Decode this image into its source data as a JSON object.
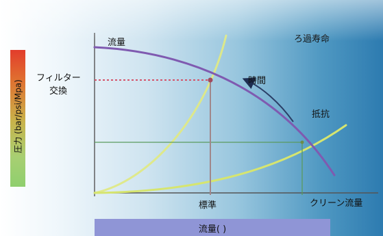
{
  "labels": {
    "flow": "流量",
    "filter_life": "ろ過寿命",
    "filter_change_line1": "フィルター",
    "filter_change_line2": "交換",
    "time": "時間",
    "resistance": "抵抗",
    "standard": "標準",
    "clean_flow": "クリーン流量",
    "pressure_axis": "圧力 (bar/psi/Mpa)",
    "flow_axis": "流量( )"
  },
  "colors": {
    "flow_curve": "#7f5ab0",
    "resistance_curve": "#d8e87a",
    "time_arrow": "#2a3e66",
    "filter_change_marker": "#d4536a",
    "standard_marker": "#a0868a",
    "clean_marker": "#5a9a5e",
    "axis": "#555555"
  }
}
